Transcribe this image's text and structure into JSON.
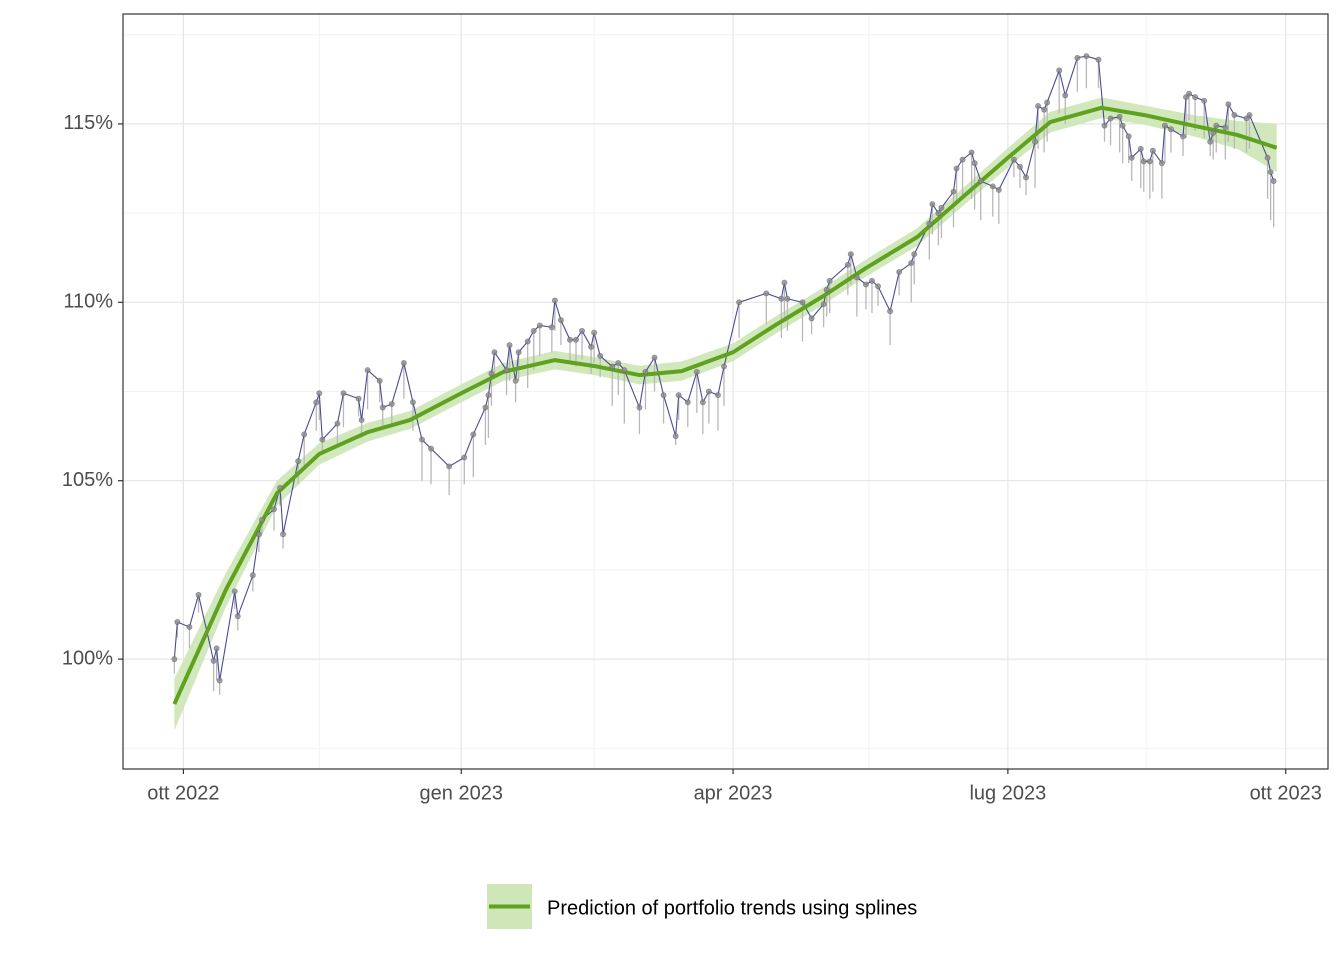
{
  "chart_data": {
    "type": "line",
    "xlim": [
      "2022-09-11",
      "2023-10-15"
    ],
    "xticks": [
      {
        "value": "2022-10-01",
        "label": "ott 2022"
      },
      {
        "value": "2023-01-01",
        "label": "gen 2023"
      },
      {
        "value": "2023-04-01",
        "label": "apr 2023"
      },
      {
        "value": "2023-07-01",
        "label": "lug 2023"
      },
      {
        "value": "2023-10-01",
        "label": "ott 2023"
      }
    ],
    "xminor": [
      "2022-11-15",
      "2023-02-14",
      "2023-05-16",
      "2023-08-16"
    ],
    "ylim": [
      96.92,
      118.08
    ],
    "yticks": [
      {
        "value": 100,
        "label": "100%"
      },
      {
        "value": 105,
        "label": "105%"
      },
      {
        "value": 110,
        "label": "110%"
      },
      {
        "value": 115,
        "label": "115%"
      }
    ],
    "yminor": [
      97.5,
      102.5,
      107.5,
      112.5,
      117.5
    ],
    "grid": true,
    "legend_position": "bottom",
    "x": [
      "2022-09-28",
      "2022-09-29",
      "2022-10-03",
      "2022-10-06",
      "2022-10-11",
      "2022-10-12",
      "2022-10-13",
      "2022-10-18",
      "2022-10-19",
      "2022-10-24",
      "2022-10-26",
      "2022-10-27",
      "2022-10-31",
      "2022-11-02",
      "2022-11-03",
      "2022-11-08",
      "2022-11-10",
      "2022-11-14",
      "2022-11-15",
      "2022-11-16",
      "2022-11-21",
      "2022-11-23",
      "2022-11-28",
      "2022-11-29",
      "2022-12-01",
      "2022-12-05",
      "2022-12-06",
      "2022-12-09",
      "2022-12-13",
      "2022-12-16",
      "2022-12-19",
      "2022-12-22",
      "2022-12-28",
      "2023-01-02",
      "2023-01-05",
      "2023-01-09",
      "2023-01-10",
      "2023-01-11",
      "2023-01-12",
      "2023-01-16",
      "2023-01-17",
      "2023-01-19",
      "2023-01-20",
      "2023-01-23",
      "2023-01-25",
      "2023-01-27",
      "2023-01-31",
      "2023-02-01",
      "2023-02-03",
      "2023-02-06",
      "2023-02-08",
      "2023-02-10",
      "2023-02-13",
      "2023-02-14",
      "2023-02-16",
      "2023-02-20",
      "2023-02-22",
      "2023-02-24",
      "2023-03-01",
      "2023-03-03",
      "2023-03-06",
      "2023-03-09",
      "2023-03-13",
      "2023-03-14",
      "2023-03-17",
      "2023-03-20",
      "2023-03-22",
      "2023-03-24",
      "2023-03-27",
      "2023-03-29",
      "2023-04-03",
      "2023-04-12",
      "2023-04-17",
      "2023-04-18",
      "2023-04-19",
      "2023-04-24",
      "2023-04-27",
      "2023-05-01",
      "2023-05-02",
      "2023-05-03",
      "2023-05-09",
      "2023-05-10",
      "2023-05-12",
      "2023-05-15",
      "2023-05-17",
      "2023-05-19",
      "2023-05-23",
      "2023-05-26",
      "2023-05-30",
      "2023-05-31",
      "2023-06-05",
      "2023-06-06",
      "2023-06-08",
      "2023-06-09",
      "2023-06-13",
      "2023-06-14",
      "2023-06-16",
      "2023-06-19",
      "2023-06-20",
      "2023-06-22",
      "2023-06-26",
      "2023-06-28",
      "2023-07-03",
      "2023-07-05",
      "2023-07-07",
      "2023-07-10",
      "2023-07-11",
      "2023-07-13",
      "2023-07-14",
      "2023-07-18",
      "2023-07-20",
      "2023-07-24",
      "2023-07-27",
      "2023-07-31",
      "2023-08-02",
      "2023-08-04",
      "2023-08-07",
      "2023-08-08",
      "2023-08-10",
      "2023-08-11",
      "2023-08-14",
      "2023-08-15",
      "2023-08-17",
      "2023-08-18",
      "2023-08-21",
      "2023-08-22",
      "2023-08-24",
      "2023-08-28",
      "2023-08-29",
      "2023-08-30",
      "2023-09-01",
      "2023-09-04",
      "2023-09-06",
      "2023-09-07",
      "2023-09-08",
      "2023-09-11",
      "2023-09-12",
      "2023-09-14",
      "2023-09-18",
      "2023-09-19",
      "2023-09-25",
      "2023-09-26",
      "2023-09-27"
    ],
    "series": [
      {
        "color": "#4b4b96",
        "point_color": "#8c8c8c",
        "error_color": "#b8b8b8",
        "values": [
          100.0,
          101.04,
          100.9,
          101.8,
          99.95,
          100.3,
          99.4,
          101.9,
          101.2,
          102.35,
          103.5,
          103.9,
          104.2,
          104.8,
          103.5,
          105.55,
          106.3,
          107.2,
          107.45,
          106.15,
          106.6,
          107.45,
          107.3,
          106.7,
          108.1,
          107.8,
          107.05,
          107.15,
          108.3,
          107.2,
          106.15,
          105.9,
          105.4,
          105.65,
          106.3,
          107.05,
          107.4,
          108.0,
          108.6,
          108.1,
          108.8,
          107.8,
          108.6,
          108.9,
          109.2,
          109.35,
          109.3,
          110.05,
          109.5,
          108.95,
          108.95,
          109.2,
          108.75,
          109.15,
          108.5,
          108.2,
          108.3,
          108.1,
          107.05,
          108.05,
          108.45,
          107.4,
          106.25,
          107.4,
          107.2,
          108.05,
          107.2,
          107.5,
          107.4,
          108.2,
          110.0,
          110.25,
          110.1,
          110.55,
          110.1,
          110.0,
          109.55,
          109.95,
          110.35,
          110.6,
          111.05,
          111.35,
          110.7,
          110.5,
          110.6,
          110.45,
          109.75,
          110.85,
          111.1,
          111.35,
          112.2,
          112.75,
          112.5,
          112.65,
          113.1,
          113.75,
          114.0,
          114.2,
          113.9,
          113.4,
          113.25,
          113.15,
          114.0,
          113.8,
          113.5,
          114.5,
          115.5,
          115.4,
          115.6,
          116.5,
          115.8,
          116.85,
          116.9,
          116.8,
          114.95,
          115.15,
          115.2,
          114.95,
          114.65,
          114.05,
          114.3,
          113.95,
          113.95,
          114.25,
          113.9,
          114.95,
          114.85,
          114.65,
          115.75,
          115.85,
          115.75,
          115.65,
          114.5,
          114.75,
          114.95,
          114.9,
          115.55,
          115.25,
          115.15,
          115.25,
          114.05,
          113.65,
          113.4
        ],
        "lows": [
          99.6,
          100.6,
          100.3,
          101.3,
          99.1,
          99.4,
          99.0,
          101.4,
          100.8,
          101.9,
          103.0,
          103.5,
          103.6,
          104.3,
          103.1,
          104.9,
          105.4,
          106.4,
          106.7,
          105.8,
          106.0,
          106.5,
          106.8,
          106.2,
          107.0,
          107.2,
          106.5,
          106.6,
          107.3,
          106.4,
          105.0,
          104.9,
          104.6,
          104.9,
          105.1,
          106.0,
          106.2,
          107.1,
          107.9,
          107.4,
          107.8,
          107.2,
          107.8,
          107.6,
          108.1,
          108.5,
          108.6,
          109.2,
          108.8,
          108.3,
          108.2,
          108.4,
          108.0,
          108.3,
          107.9,
          107.1,
          107.4,
          106.6,
          106.3,
          107.0,
          107.5,
          106.6,
          106.0,
          106.7,
          106.5,
          106.9,
          106.3,
          106.6,
          106.4,
          107.1,
          109.0,
          109.4,
          109.0,
          109.5,
          109.2,
          108.9,
          109.1,
          109.3,
          109.6,
          109.7,
          110.2,
          110.5,
          109.6,
          109.8,
          109.7,
          109.9,
          108.8,
          110.2,
          110.0,
          110.5,
          111.2,
          111.9,
          111.6,
          111.8,
          112.1,
          112.8,
          113.0,
          112.9,
          112.6,
          112.3,
          112.4,
          112.2,
          113.5,
          113.2,
          113.0,
          113.2,
          114.3,
          114.2,
          114.5,
          115.3,
          115.0,
          115.9,
          116.0,
          116.0,
          114.5,
          114.4,
          114.2,
          113.9,
          113.9,
          113.4,
          113.2,
          113.1,
          112.9,
          113.1,
          112.9,
          113.9,
          114.2,
          114.1,
          114.6,
          115.1,
          114.8,
          114.6,
          114.1,
          114.0,
          114.2,
          114.0,
          114.5,
          114.3,
          114.2,
          114.3,
          112.9,
          112.3,
          112.1
        ]
      },
      {
        "name": "Prediction of portfolio trends using splines",
        "color": "#5ea21e",
        "band_color": "#cfe6b8",
        "x": [
          "2022-09-28",
          "2022-10-15",
          "2022-11-01",
          "2022-11-15",
          "2022-12-01",
          "2022-12-15",
          "2023-01-01",
          "2023-01-15",
          "2023-02-01",
          "2023-02-15",
          "2023-03-01",
          "2023-03-15",
          "2023-04-01",
          "2023-04-15",
          "2023-05-01",
          "2023-05-15",
          "2023-06-01",
          "2023-06-15",
          "2023-07-01",
          "2023-07-15",
          "2023-08-01",
          "2023-08-15",
          "2023-09-01",
          "2023-09-15",
          "2023-09-28"
        ],
        "values": [
          98.74,
          101.93,
          104.65,
          105.75,
          106.36,
          106.7,
          107.45,
          108.05,
          108.38,
          108.2,
          107.96,
          108.07,
          108.6,
          109.36,
          110.18,
          110.96,
          111.83,
          112.87,
          114.05,
          115.05,
          115.45,
          115.25,
          114.94,
          114.69,
          114.33
        ],
        "lower": [
          98.0,
          101.45,
          104.3,
          105.45,
          106.1,
          106.45,
          107.2,
          107.8,
          108.12,
          107.95,
          107.7,
          107.8,
          108.35,
          109.12,
          109.94,
          110.72,
          111.58,
          112.62,
          113.78,
          114.76,
          115.16,
          114.98,
          114.64,
          114.3,
          113.65
        ],
        "upper": [
          99.45,
          102.4,
          105.0,
          106.05,
          106.62,
          106.95,
          107.7,
          108.3,
          108.64,
          108.45,
          108.22,
          108.34,
          108.85,
          109.6,
          110.42,
          111.2,
          112.08,
          113.12,
          114.32,
          115.34,
          115.74,
          115.52,
          115.24,
          115.08,
          115.0
        ]
      }
    ]
  }
}
